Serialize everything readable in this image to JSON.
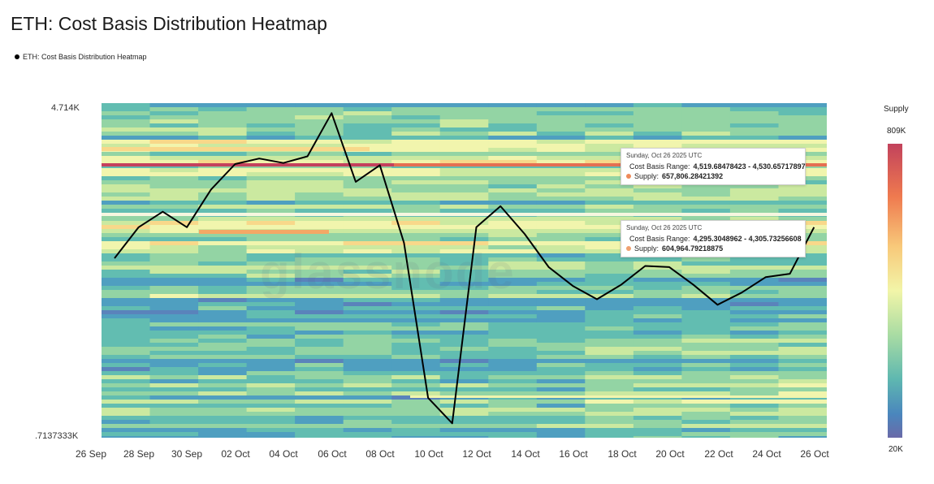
{
  "title": "ETH: Cost Basis Distribution Heatmap",
  "legend_label": "ETH: Cost Basis Distribution Heatmap",
  "watermark": "glassnode",
  "colors": {
    "line": "#000000",
    "tooltip_dot_1": "#ee8a5a",
    "tooltip_dot_2": "#f0a070"
  },
  "colorbar": {
    "title": "Supply",
    "max_label": "809K",
    "min_label": "20K"
  },
  "tooltips": [
    {
      "date": "Sunday, Oct 26 2025 UTC",
      "range_label": "Cost Basis Range:",
      "range_value": "4,519.68478423 - 4,530.65717897",
      "supply_label": "Supply:",
      "supply_value": "657,806.28421392"
    },
    {
      "date": "Sunday, Oct 26 2025 UTC",
      "range_label": "Cost Basis Range:",
      "range_value": "4,295.3048962 - 4,305.73256608",
      "supply_label": "Supply:",
      "supply_value": "604,964.79218875"
    }
  ],
  "chart_data": {
    "type": "heatmap",
    "title": "ETH: Cost Basis Distribution Heatmap",
    "y_top_label": "4.714K",
    "y_bottom_label": ".7137333K",
    "x_ticks": [
      "26 Sep",
      "28 Sep",
      "30 Sep",
      "02 Oct",
      "04 Oct",
      "06 Oct",
      "08 Oct",
      "10 Oct",
      "12 Oct",
      "14 Oct",
      "16 Oct",
      "18 Oct",
      "20 Oct",
      "22 Oct",
      "24 Oct",
      "26 Oct"
    ],
    "price_series": {
      "x": [
        "27 Sep",
        "28 Sep",
        "29 Sep",
        "30 Sep",
        "01 Oct",
        "02 Oct",
        "03 Oct",
        "04 Oct",
        "05 Oct",
        "06 Oct",
        "07 Oct",
        "08 Oct",
        "09 Oct",
        "10 Oct",
        "11 Oct",
        "12 Oct",
        "13 Oct",
        "14 Oct",
        "15 Oct",
        "16 Oct",
        "17 Oct",
        "18 Oct",
        "19 Oct",
        "20 Oct",
        "21 Oct",
        "22 Oct",
        "23 Oct",
        "24 Oct",
        "25 Oct",
        "26 Oct"
      ],
      "values": [
        4020,
        4300,
        4440,
        4300,
        4640,
        4870,
        4920,
        4880,
        4940,
        5330,
        4710,
        4860,
        4160,
        2760,
        2530,
        4300,
        4490,
        4240,
        3940,
        3770,
        3650,
        3780,
        3950,
        3940,
        3780,
        3600,
        3710,
        3850,
        3880,
        4300
      ]
    }
  }
}
